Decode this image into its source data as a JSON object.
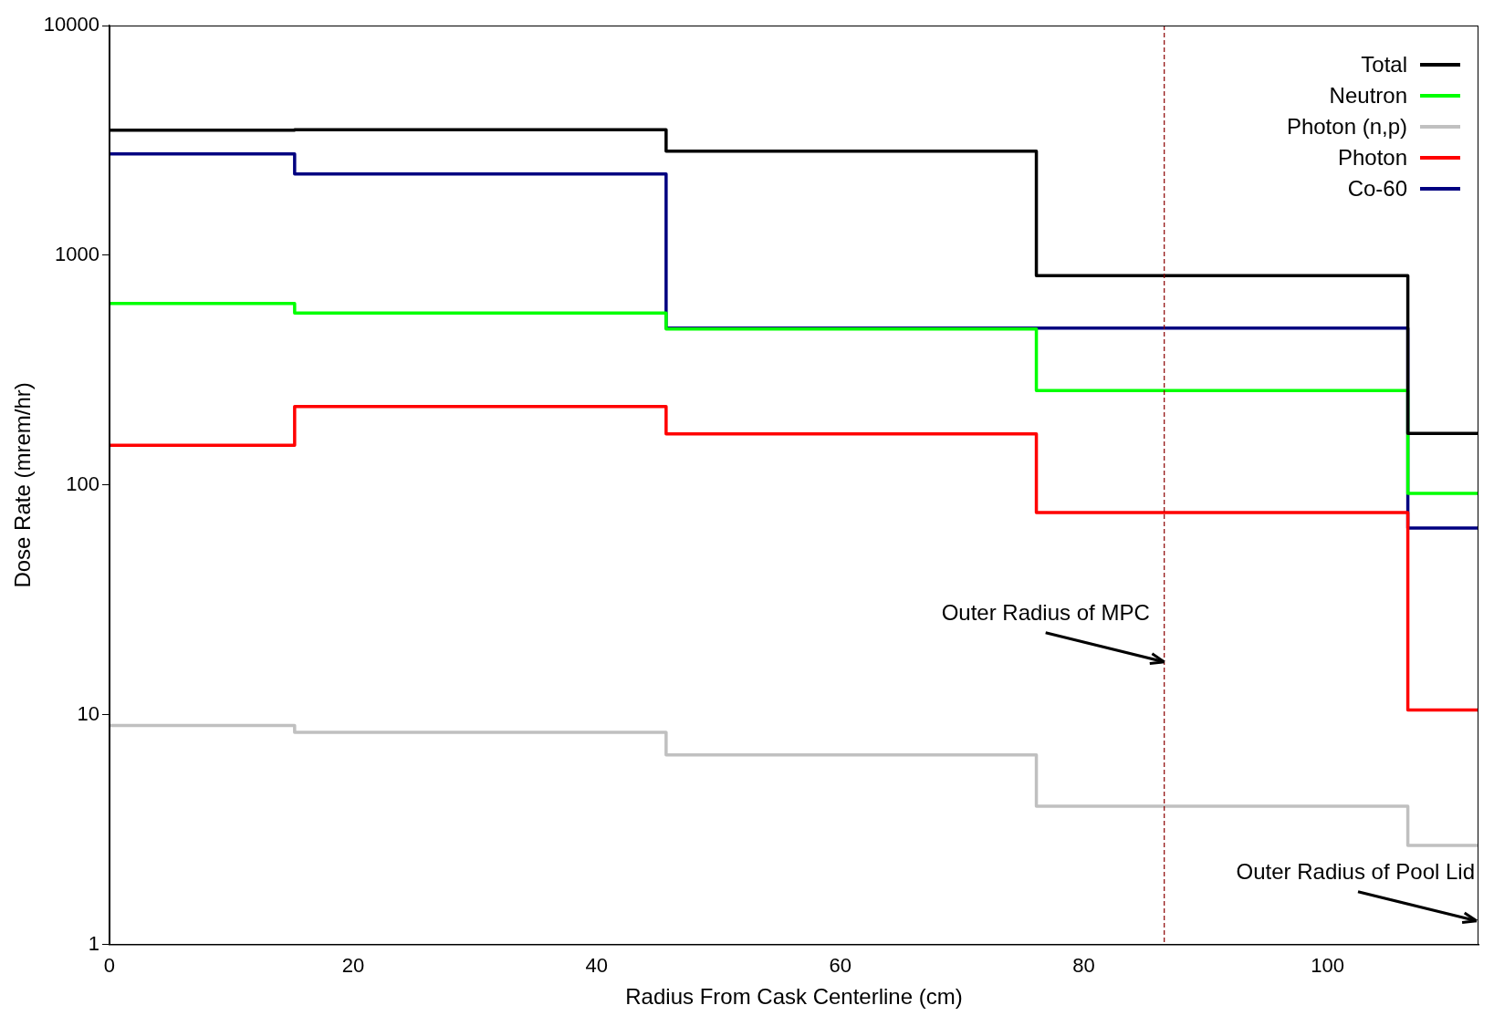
{
  "chart_data": {
    "type": "step",
    "xlabel": "Radius From Cask Centerline (cm)",
    "ylabel": "Dose Rate (mrem/hr)",
    "x": [
      0,
      15.2,
      45.7,
      76.1,
      106.6,
      112.4
    ],
    "xlim": [
      0,
      112.4
    ],
    "xticks": [
      0,
      20,
      40,
      60,
      80,
      100
    ],
    "ylim": [
      1,
      10000
    ],
    "yticks": [
      1,
      10,
      100,
      1000,
      10000
    ],
    "log": "y",
    "legend": "top right",
    "series": [
      {
        "name": "Total",
        "color": "#000000",
        "values": [
          3500,
          3520,
          2840,
          815,
          168,
          168
        ]
      },
      {
        "name": "Neutron",
        "color": "#00ff00",
        "values": [
          617,
          561,
          478,
          258,
          92,
          92
        ]
      },
      {
        "name": "Photon (n,p)",
        "color": "#c0c0c0",
        "values": [
          9.0,
          8.4,
          6.7,
          4.0,
          2.7,
          2.7
        ]
      },
      {
        "name": "Photon",
        "color": "#ff0000",
        "values": [
          149,
          220,
          167,
          76,
          10.5,
          10.5
        ]
      },
      {
        "name": "Co-60",
        "color": "#000080",
        "values": [
          2760,
          2260,
          482,
          482,
          65,
          65
        ]
      }
    ],
    "ref_lines": [
      {
        "axis": "x",
        "value": 86.6,
        "color": "#8b0000",
        "line_style": "dashed"
      }
    ],
    "annotations": [
      {
        "text": "Outer Radius of MPC",
        "x": 86.6,
        "y": 17
      },
      "Outer Radius of Pool Lid"
    ]
  }
}
